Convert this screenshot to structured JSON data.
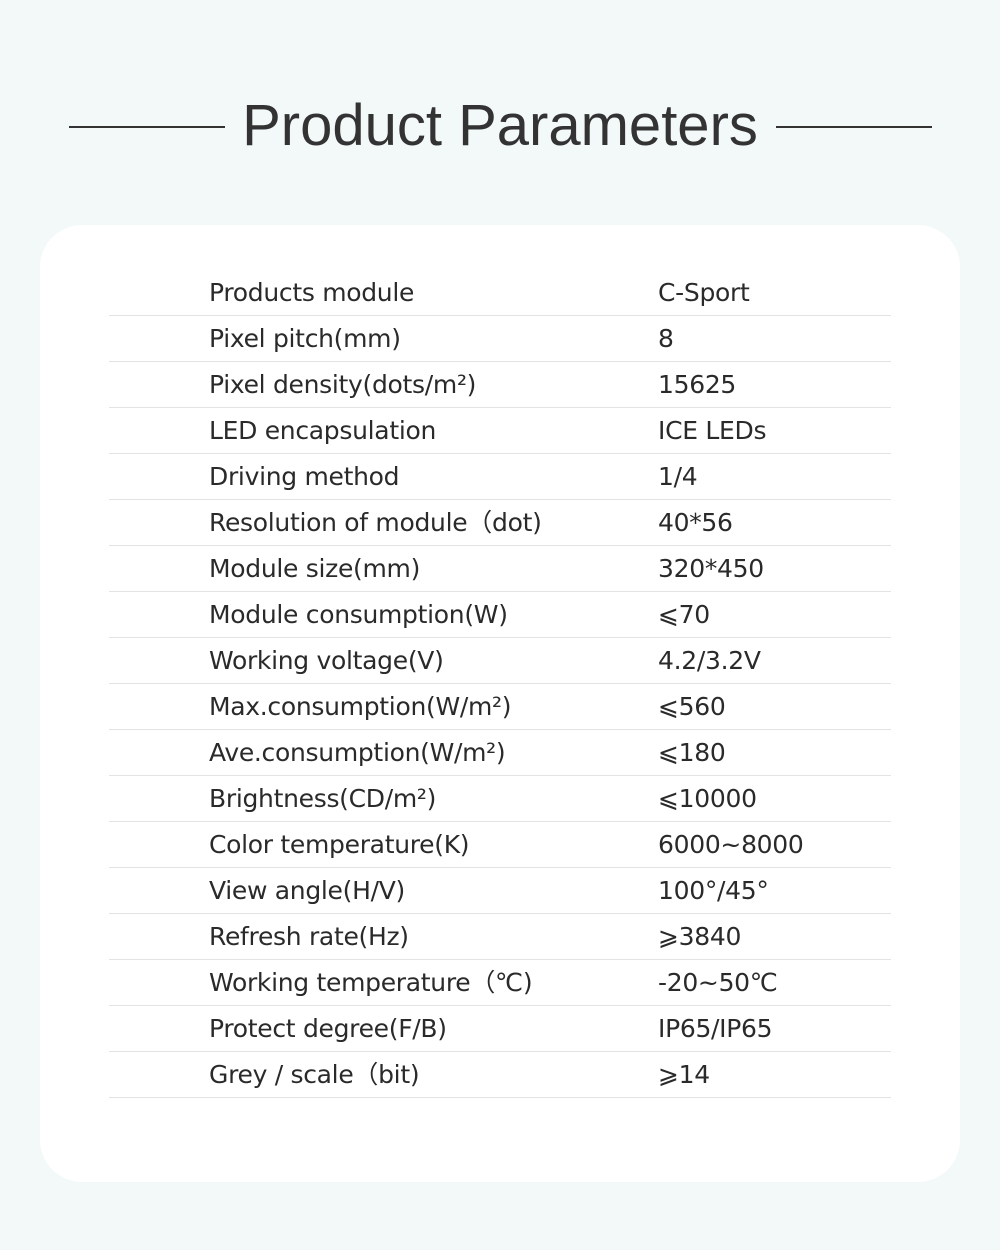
{
  "title": "Product Parameters",
  "parameters": [
    {
      "label": "Products module",
      "value": "C-Sport"
    },
    {
      "label": "Pixel pitch(mm)",
      "value": "8"
    },
    {
      "label": "Pixel density(dots/m²)",
      "value": "15625"
    },
    {
      "label": "LED encapsulation",
      "value": "ICE LEDs"
    },
    {
      "label": "Driving method",
      "value": "1/4"
    },
    {
      "label": "Resolution of module（dot)",
      "value": "40*56"
    },
    {
      "label": "Module size(mm)",
      "value": "320*450"
    },
    {
      "label": "Module consumption(W)",
      "value": "⩽70"
    },
    {
      "label": "Working voltage(V)",
      "value": "4.2/3.2V"
    },
    {
      "label": "Max.consumption(W/m²)",
      "value": "⩽560"
    },
    {
      "label": "Ave.consumption(W/m²)",
      "value": "⩽180"
    },
    {
      "label": "Brightness(CD/m²)",
      "value": "⩽10000"
    },
    {
      "label": "Color temperature(K)",
      "value": "6000~8000"
    },
    {
      "label": "View angle(H/V)",
      "value": "100°/45°"
    },
    {
      "label": "Refresh rate(Hz)",
      "value": "⩾3840"
    },
    {
      "label": "Working temperature（℃)",
      "value": "-20~50℃"
    },
    {
      "label": "Protect degree(F/B)",
      "value": "IP65/IP65"
    },
    {
      "label": "Grey / scale（bit)",
      "value": "⩾14"
    }
  ]
}
